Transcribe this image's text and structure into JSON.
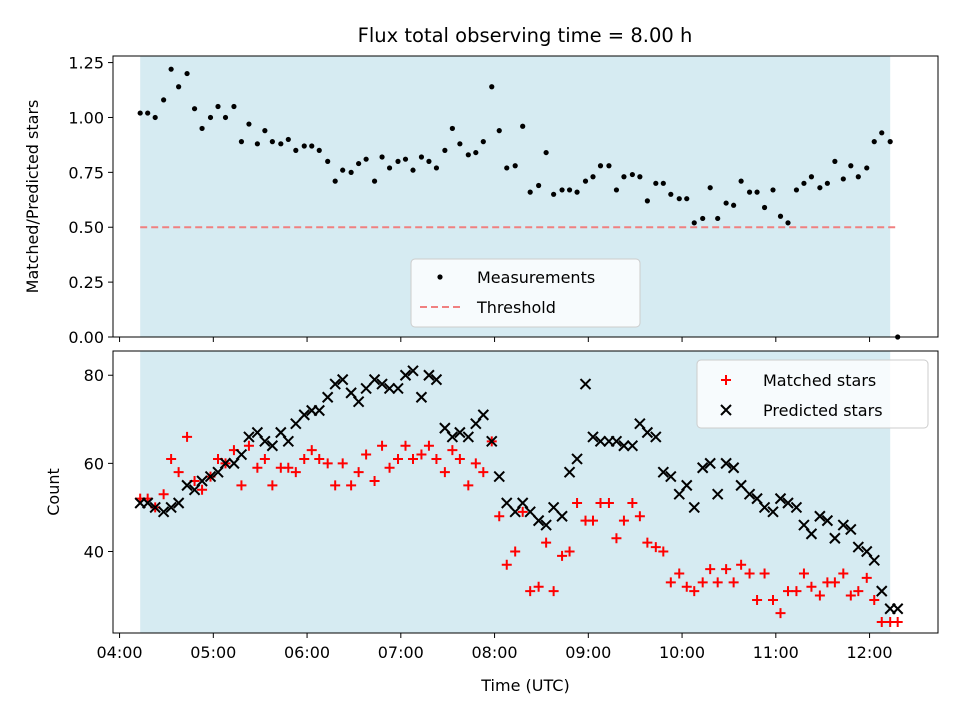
{
  "title": "Flux total observing time = 8.00 h",
  "colors": {
    "band": "#add8e6",
    "threshold": "#f08080",
    "matched": "#ff0000",
    "predicted": "#000000",
    "measurement": "#000000"
  },
  "chart_data": [
    {
      "type": "scatter",
      "ylabel": "Matched/Predicted stars",
      "ylim": [
        0,
        1.28
      ],
      "yticks": [
        0.0,
        0.25,
        0.5,
        0.75,
        1.0,
        1.25
      ],
      "ytick_labels": [
        "0.00",
        "0.25",
        "0.50",
        "0.75",
        "1.00",
        "1.25"
      ],
      "xlim_hours": [
        3.93,
        12.73
      ],
      "grid": false,
      "legend": {
        "placement": "lower center",
        "entries": [
          "Measurements",
          "Threshold"
        ]
      },
      "observing_window_hours": [
        4.22,
        12.22
      ],
      "threshold": {
        "name": "Threshold",
        "value": 0.5,
        "x_range_hours": [
          4.22,
          12.3
        ]
      },
      "series": [
        {
          "name": "Measurements",
          "marker": "dot",
          "x_hours": [
            4.22,
            4.3,
            4.38,
            4.47,
            4.55,
            4.63,
            4.72,
            4.8,
            4.88,
            4.97,
            5.05,
            5.13,
            5.22,
            5.3,
            5.38,
            5.47,
            5.55,
            5.63,
            5.72,
            5.8,
            5.88,
            5.97,
            6.05,
            6.13,
            6.22,
            6.3,
            6.38,
            6.47,
            6.55,
            6.63,
            6.72,
            6.8,
            6.88,
            6.97,
            7.05,
            7.13,
            7.22,
            7.3,
            7.38,
            7.47,
            7.55,
            7.63,
            7.72,
            7.8,
            7.88,
            7.97,
            8.05,
            8.13,
            8.22,
            8.3,
            8.38,
            8.47,
            8.55,
            8.63,
            8.72,
            8.8,
            8.88,
            8.97,
            9.05,
            9.13,
            9.22,
            9.3,
            9.38,
            9.47,
            9.55,
            9.63,
            9.72,
            9.8,
            9.88,
            9.97,
            10.05,
            10.13,
            10.22,
            10.3,
            10.38,
            10.47,
            10.55,
            10.63,
            10.72,
            10.8,
            10.88,
            10.97,
            11.05,
            11.13,
            11.22,
            11.3,
            11.38,
            11.47,
            11.55,
            11.63,
            11.72,
            11.8,
            11.88,
            11.97,
            12.05,
            12.13,
            12.22,
            12.3
          ],
          "y": [
            1.02,
            1.02,
            1.0,
            1.08,
            1.22,
            1.14,
            1.2,
            1.04,
            0.95,
            1.0,
            1.05,
            1.0,
            1.05,
            0.89,
            0.97,
            0.88,
            0.94,
            0.89,
            0.88,
            0.9,
            0.85,
            0.87,
            0.87,
            0.85,
            0.8,
            0.71,
            0.76,
            0.75,
            0.79,
            0.81,
            0.71,
            0.82,
            0.77,
            0.8,
            0.81,
            0.76,
            0.82,
            0.8,
            0.77,
            0.85,
            0.95,
            0.88,
            0.83,
            0.84,
            0.89,
            1.14,
            0.94,
            0.77,
            0.78,
            0.96,
            0.66,
            0.69,
            0.84,
            0.65,
            0.67,
            0.67,
            0.66,
            0.71,
            0.73,
            0.78,
            0.78,
            0.67,
            0.73,
            0.74,
            0.73,
            0.62,
            0.7,
            0.7,
            0.65,
            0.63,
            0.63,
            0.52,
            0.54,
            0.68,
            0.54,
            0.61,
            0.6,
            0.71,
            0.66,
            0.66,
            0.59,
            0.67,
            0.55,
            0.52,
            0.67,
            0.7,
            0.73,
            0.68,
            0.7,
            0.8,
            0.72,
            0.78,
            0.73,
            0.77,
            0.89,
            0.93,
            0.89,
            0.0
          ]
        }
      ]
    },
    {
      "type": "scatter",
      "xlabel": "Time (UTC)",
      "ylabel": "Count",
      "ylim": [
        21.5,
        85.5
      ],
      "yticks": [
        40,
        60,
        80
      ],
      "ytick_labels": [
        "40",
        "60",
        "80"
      ],
      "xlim_hours": [
        3.93,
        12.73
      ],
      "xticks_hours": [
        4,
        5,
        6,
        7,
        8,
        9,
        10,
        11,
        12
      ],
      "xtick_labels": [
        "04:00",
        "05:00",
        "06:00",
        "07:00",
        "08:00",
        "09:00",
        "10:00",
        "11:00",
        "12:00"
      ],
      "grid": false,
      "legend": {
        "placement": "upper right",
        "entries": [
          "Matched stars",
          "Predicted stars"
        ]
      },
      "observing_window_hours": [
        4.22,
        12.22
      ],
      "series": [
        {
          "name": "Matched stars",
          "marker": "plus",
          "x_hours": [
            4.22,
            4.3,
            4.38,
            4.47,
            4.55,
            4.63,
            4.72,
            4.8,
            4.88,
            4.97,
            5.05,
            5.13,
            5.22,
            5.3,
            5.38,
            5.47,
            5.55,
            5.63,
            5.72,
            5.8,
            5.88,
            5.97,
            6.05,
            6.13,
            6.22,
            6.3,
            6.38,
            6.47,
            6.55,
            6.63,
            6.72,
            6.8,
            6.88,
            6.97,
            7.05,
            7.13,
            7.22,
            7.3,
            7.38,
            7.47,
            7.55,
            7.63,
            7.72,
            7.8,
            7.88,
            7.97,
            8.05,
            8.13,
            8.22,
            8.3,
            8.38,
            8.47,
            8.55,
            8.63,
            8.72,
            8.8,
            8.88,
            8.97,
            9.05,
            9.13,
            9.22,
            9.3,
            9.38,
            9.47,
            9.55,
            9.63,
            9.72,
            9.8,
            9.88,
            9.97,
            10.05,
            10.13,
            10.22,
            10.3,
            10.38,
            10.47,
            10.55,
            10.63,
            10.72,
            10.8,
            10.88,
            10.97,
            11.05,
            11.13,
            11.22,
            11.3,
            11.38,
            11.47,
            11.55,
            11.63,
            11.72,
            11.8,
            11.88,
            11.97,
            12.05,
            12.13,
            12.22,
            12.3
          ],
          "y": [
            52,
            52,
            50,
            53,
            61,
            58,
            66,
            56,
            54,
            57,
            61,
            60,
            63,
            55,
            64,
            59,
            61,
            55,
            59,
            59,
            58,
            61,
            63,
            61,
            60,
            55,
            60,
            55,
            58,
            62,
            56,
            64,
            59,
            61,
            64,
            61,
            62,
            64,
            61,
            58,
            63,
            61,
            55,
            60,
            58,
            65,
            48,
            37,
            40,
            49,
            31,
            32,
            42,
            31,
            39,
            40,
            51,
            47,
            47,
            51,
            51,
            43,
            47,
            51,
            48,
            42,
            41,
            40,
            33,
            35,
            32,
            31,
            33,
            36,
            33,
            36,
            33,
            37,
            35,
            29,
            35,
            29,
            26,
            31,
            31,
            35,
            32,
            30,
            33,
            33,
            35,
            30,
            31,
            34,
            29,
            24,
            24,
            24
          ],
          "note_y": ""
        },
        {
          "name": "Predicted stars",
          "marker": "x",
          "x_hours": [
            4.22,
            4.3,
            4.38,
            4.47,
            4.55,
            4.63,
            4.72,
            4.8,
            4.88,
            4.97,
            5.05,
            5.13,
            5.22,
            5.3,
            5.38,
            5.47,
            5.55,
            5.63,
            5.72,
            5.8,
            5.88,
            5.97,
            6.05,
            6.13,
            6.22,
            6.3,
            6.38,
            6.47,
            6.55,
            6.63,
            6.72,
            6.8,
            6.88,
            6.97,
            7.05,
            7.13,
            7.22,
            7.3,
            7.38,
            7.47,
            7.55,
            7.63,
            7.72,
            7.8,
            7.88,
            7.97,
            8.05,
            8.13,
            8.22,
            8.3,
            8.38,
            8.47,
            8.55,
            8.63,
            8.72,
            8.8,
            8.88,
            8.97,
            9.05,
            9.13,
            9.22,
            9.3,
            9.38,
            9.47,
            9.55,
            9.63,
            9.72,
            9.8,
            9.88,
            9.97,
            10.05,
            10.13,
            10.22,
            10.3,
            10.38,
            10.47,
            10.55,
            10.63,
            10.72,
            10.8,
            10.88,
            10.97,
            11.05,
            11.13,
            11.22,
            11.3,
            11.38,
            11.47,
            11.55,
            11.63,
            11.72,
            11.8,
            11.88,
            11.97,
            12.05,
            12.13,
            12.22,
            12.3
          ],
          "y": [
            51,
            51,
            50,
            49,
            50,
            51,
            55,
            54,
            56,
            57,
            58,
            60,
            60,
            62,
            66,
            67,
            65,
            64,
            67,
            65,
            69,
            71,
            72,
            72,
            75,
            78,
            79,
            76,
            74,
            77,
            79,
            78,
            77,
            77,
            80,
            81,
            75,
            80,
            79,
            68,
            66,
            67,
            66,
            69,
            71,
            65,
            57,
            51,
            49,
            51,
            49,
            47,
            46,
            50,
            48,
            58,
            61,
            78,
            66,
            65,
            65,
            65,
            64,
            64,
            69,
            67,
            66,
            58,
            57,
            53,
            55,
            50,
            59,
            60,
            53,
            60,
            59,
            55,
            53,
            52,
            50,
            49,
            52,
            51,
            50,
            46,
            44,
            48,
            47,
            43,
            46,
            45,
            41,
            40,
            38,
            31,
            27,
            27
          ]
        }
      ]
    }
  ]
}
